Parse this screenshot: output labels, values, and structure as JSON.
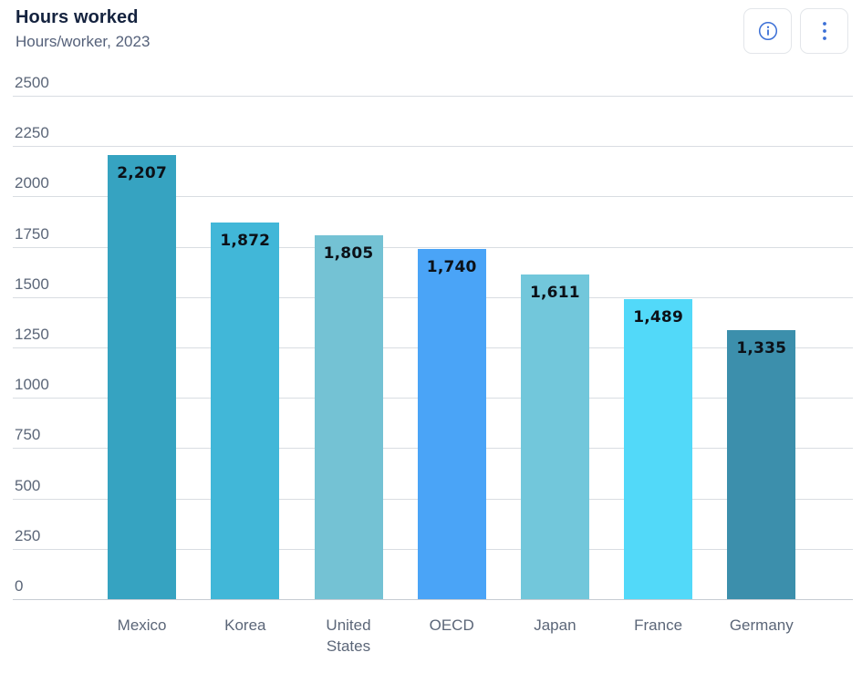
{
  "header": {
    "title": "Hours worked",
    "subtitle": "Hours/worker, 2023"
  },
  "toolbar": {
    "info_button": "info",
    "menu_button": "more options"
  },
  "chart_data": {
    "type": "bar",
    "title": "Hours worked",
    "subtitle": "Hours/worker, 2023",
    "categories": [
      "Mexico",
      "Korea",
      "United States",
      "OECD",
      "Japan",
      "France",
      "Germany"
    ],
    "values": [
      2207,
      1872,
      1805,
      1740,
      1611,
      1489,
      1335
    ],
    "value_labels": [
      "2,207",
      "1,872",
      "1,805",
      "1,740",
      "1,611",
      "1,489",
      "1,335"
    ],
    "bar_colors": [
      "#36a3c1",
      "#41b7d8",
      "#74c2d4",
      "#4aa4f7",
      "#72c7db",
      "#52d9f9",
      "#3c8fac"
    ],
    "ylim": [
      0,
      2500
    ],
    "yticks": [
      0,
      250,
      500,
      750,
      1000,
      1250,
      1500,
      1750,
      2000,
      2250,
      2500
    ],
    "xlabel": "",
    "ylabel": "",
    "grid": true,
    "legend": "none",
    "value_labels_position": "inside-top",
    "value_label_color": "#0c1118"
  },
  "colors": {
    "accent_icon_blue": "#3b6fd6",
    "title_text": "#15233f",
    "subtitle_text": "#55617a",
    "axis_text": "#5b6678",
    "gridline": "#d9dde2",
    "baseline": "#c7ccd3",
    "background": "#ffffff"
  }
}
